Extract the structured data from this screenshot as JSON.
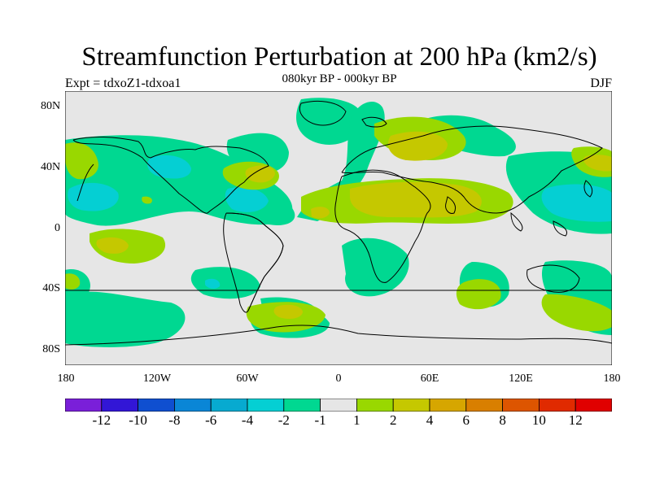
{
  "title": "Streamfunction Perturbation at 200 hPa (km2/s)",
  "subtitle": "080kyr BP - 000kyr BP",
  "left_label": "Expt = tdxoZ1-tdxoa1",
  "right_label": "DJF",
  "lat_labels": [
    "80N",
    "40N",
    "0",
    "40S",
    "80S"
  ],
  "lon_labels": [
    "180",
    "120W",
    "60W",
    "0",
    "60E",
    "120E",
    "180"
  ],
  "colorbar": {
    "colors": [
      "#7a1fd9",
      "#3216d6",
      "#0f4fd0",
      "#0a86d6",
      "#07aad0",
      "#05cfd3",
      "#00d891",
      "#e6e6e6",
      "#99d800",
      "#c5c800",
      "#d6a600",
      "#d97f00",
      "#dd5500",
      "#e02a00",
      "#e00000"
    ],
    "labels": [
      "-12",
      "-10",
      "-8",
      "-6",
      "-4",
      "-2",
      "-1",
      "1",
      "2",
      "4",
      "6",
      "8",
      "10",
      "12"
    ]
  }
}
